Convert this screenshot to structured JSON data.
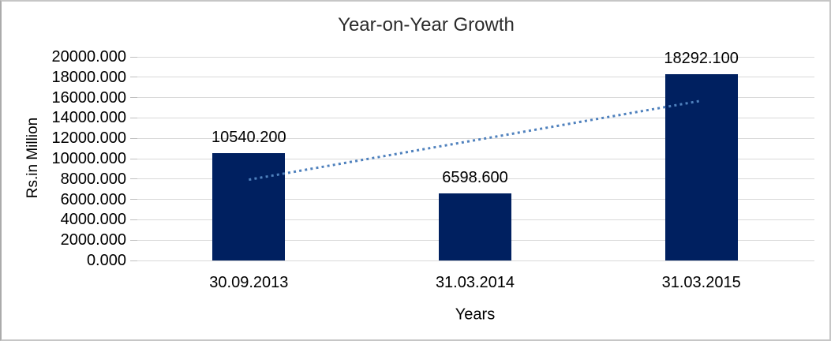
{
  "chart_data": {
    "type": "bar",
    "title": "Year-on-Year Growth",
    "xlabel": "Years",
    "ylabel": "Rs.in Million",
    "categories": [
      "30.09.2013",
      "31.03.2014",
      "31.03.2015"
    ],
    "values": [
      10540.2,
      6598.6,
      18292.1
    ],
    "data_labels": [
      "10540.200",
      "6598.600",
      "18292.100"
    ],
    "ylim": [
      0,
      20000
    ],
    "ytick_step": 2000,
    "ytick_labels": [
      "0.000",
      "2000.000",
      "4000.000",
      "6000.000",
      "8000.000",
      "10000.000",
      "12000.000",
      "14000.000",
      "16000.000",
      "18000.000",
      "20000.000"
    ],
    "grid": "horizontal-only",
    "legend": "none",
    "colors": {
      "bar": "#002060",
      "gridline": "#d9d9d9",
      "tick": "#bfbfbf",
      "trendline": "#4f81bd",
      "text": "#000000"
    },
    "trendline": {
      "type": "linear",
      "style": "dotted",
      "start_value": 7934.35,
      "end_value": 15686.25
    }
  }
}
